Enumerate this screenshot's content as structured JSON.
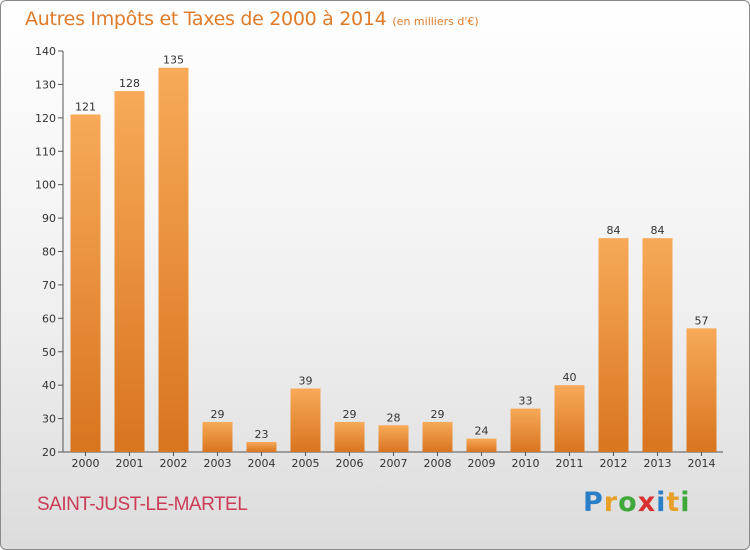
{
  "header": {
    "title": "Autres Impôts et Taxes de 2000 à 2014",
    "subtitle": "(en milliers d'€)"
  },
  "commune": "SAINT-JUST-LE-MARTEL",
  "logo": {
    "letters": [
      "P",
      "r",
      "o",
      "x",
      "i",
      "t",
      "i"
    ],
    "colors": [
      "#2b7fc8",
      "#e8a028",
      "#3ea83a",
      "#d8302f",
      "#2b7fc8",
      "#e8a028",
      "#3ea83a"
    ]
  },
  "colors": {
    "bar_light": "#f7aa58",
    "bar_dark": "#d9741f",
    "title": "#e07b2a",
    "commune": "#cc3a55"
  },
  "chart_data": {
    "type": "bar",
    "title": "Autres Impôts et Taxes de 2000 à 2014",
    "subtitle": "(en milliers d'€)",
    "categories": [
      "2000",
      "2001",
      "2002",
      "2003",
      "2004",
      "2005",
      "2006",
      "2007",
      "2008",
      "2009",
      "2010",
      "2011",
      "2012",
      "2013",
      "2014"
    ],
    "values": [
      121,
      128,
      135,
      29,
      23,
      39,
      29,
      28,
      29,
      24,
      33,
      40,
      84,
      84,
      57
    ],
    "ylim": [
      20,
      140
    ],
    "yticks": [
      20,
      30,
      40,
      50,
      60,
      70,
      80,
      90,
      100,
      110,
      120,
      130,
      140
    ],
    "grid": false,
    "xlabel": "",
    "ylabel": ""
  }
}
